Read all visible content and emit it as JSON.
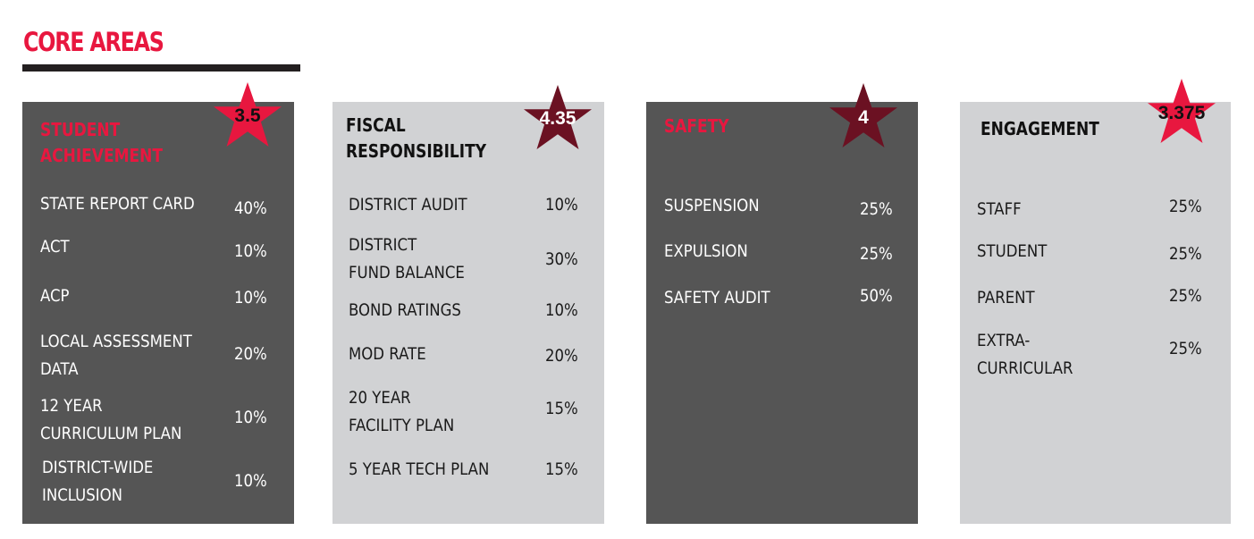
{
  "page": {
    "title": "CORE AREAS"
  },
  "colors": {
    "accent_red": "#e8173f",
    "maroon": "#6b1122",
    "dark_card": "#555555",
    "light_card": "#d1d2d4",
    "rule": "#231f20"
  },
  "cards": [
    {
      "title_lines": [
        "STUDENT",
        "ACHIEVEMENT"
      ],
      "rating": "3.5",
      "rows": [
        {
          "label_lines": [
            "STATE REPORT CARD"
          ],
          "percent": "40%"
        },
        {
          "label_lines": [
            "ACT"
          ],
          "percent": "10%"
        },
        {
          "label_lines": [
            "ACP"
          ],
          "percent": "10%"
        },
        {
          "label_lines": [
            "LOCAL ASSESSMENT",
            "DATA"
          ],
          "percent": "20%"
        },
        {
          "label_lines": [
            "12 YEAR",
            "CURRICULUM PLAN"
          ],
          "percent": "10%"
        },
        {
          "label_lines": [
            "DISTRICT-WIDE",
            "INCLUSION"
          ],
          "percent": "10%"
        }
      ]
    },
    {
      "title_lines": [
        "FISCAL",
        "RESPONSIBILITY"
      ],
      "rating": "4.35",
      "rows": [
        {
          "label_lines": [
            "DISTRICT AUDIT"
          ],
          "percent": "10%"
        },
        {
          "label_lines": [
            "DISTRICT",
            "FUND BALANCE"
          ],
          "percent": "30%"
        },
        {
          "label_lines": [
            "BOND RATINGS"
          ],
          "percent": "10%"
        },
        {
          "label_lines": [
            "MOD RATE"
          ],
          "percent": "20%"
        },
        {
          "label_lines": [
            "20 YEAR",
            "FACILITY PLAN"
          ],
          "percent": "15%"
        },
        {
          "label_lines": [
            "5 YEAR TECH PLAN"
          ],
          "percent": "15%"
        }
      ]
    },
    {
      "title_lines": [
        "SAFETY"
      ],
      "rating": "4",
      "rows": [
        {
          "label_lines": [
            "SUSPENSION"
          ],
          "percent": "25%"
        },
        {
          "label_lines": [
            "EXPULSION"
          ],
          "percent": "25%"
        },
        {
          "label_lines": [
            "SAFETY AUDIT"
          ],
          "percent": "50%"
        }
      ]
    },
    {
      "title_lines": [
        "ENGAGEMENT"
      ],
      "rating": "3.375",
      "rows": [
        {
          "label_lines": [
            "STAFF"
          ],
          "percent": "25%"
        },
        {
          "label_lines": [
            "STUDENT"
          ],
          "percent": "25%"
        },
        {
          "label_lines": [
            "PARENT"
          ],
          "percent": "25%"
        },
        {
          "label_lines": [
            "EXTRA-",
            "CURRICULAR"
          ],
          "percent": "25%"
        }
      ]
    }
  ]
}
